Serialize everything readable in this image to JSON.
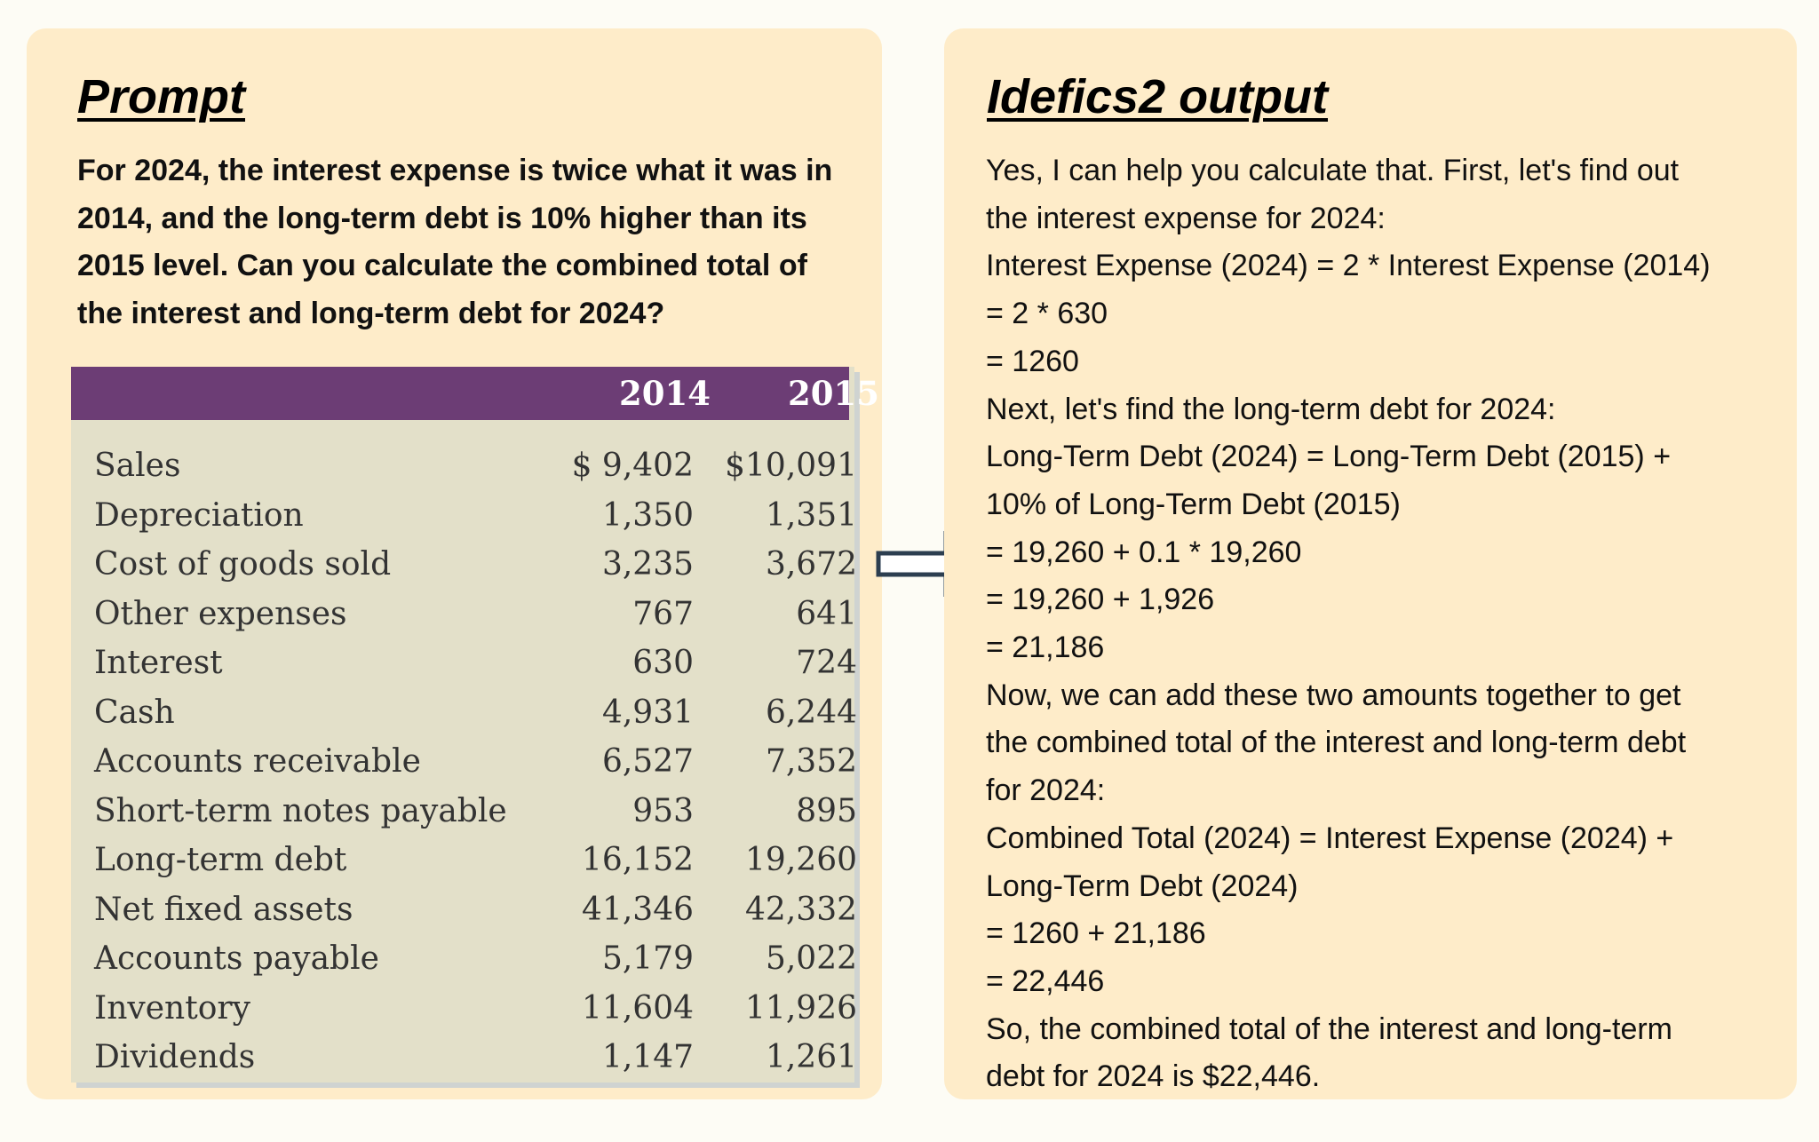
{
  "prompt_panel": {
    "title": "Prompt",
    "question": "For 2024, the interest expense is twice what it was in 2014, and the long-term debt is 10% higher than its 2015 level. Can you calculate the combined total of the interest and long-term debt for 2024?",
    "table": {
      "columns": [
        "2014",
        "2015"
      ],
      "rows": [
        {
          "label": "Sales",
          "y2014": "$ 9,402",
          "y2015": "$10,091"
        },
        {
          "label": "Depreciation",
          "y2014": "1,350",
          "y2015": "1,351"
        },
        {
          "label": "Cost of goods sold",
          "y2014": "3,235",
          "y2015": "3,672"
        },
        {
          "label": "Other expenses",
          "y2014": "767",
          "y2015": "641"
        },
        {
          "label": "Interest",
          "y2014": "630",
          "y2015": "724"
        },
        {
          "label": "Cash",
          "y2014": "4,931",
          "y2015": "6,244"
        },
        {
          "label": "Accounts receivable",
          "y2014": "6,527",
          "y2015": "7,352"
        },
        {
          "label": "Short-term notes payable",
          "y2014": "953",
          "y2015": "895"
        },
        {
          "label": "Long-term debt",
          "y2014": "16,152",
          "y2015": "19,260"
        },
        {
          "label": "Net fixed assets",
          "y2014": "41,346",
          "y2015": "42,332"
        },
        {
          "label": "Accounts payable",
          "y2014": "5,179",
          "y2015": "5,022"
        },
        {
          "label": "Inventory",
          "y2014": "11,604",
          "y2015": "11,926"
        },
        {
          "label": "Dividends",
          "y2014": "1,147",
          "y2015": "1,261"
        }
      ]
    }
  },
  "arrow_icon": "right-arrow-icon",
  "output_panel": {
    "title": "Idefics2 output",
    "lines": [
      "Yes, I can help you calculate that. First, let's find out",
      "the interest expense for 2024:",
      "Interest Expense (2024) = 2 * Interest Expense (2014)",
      "= 2 * 630",
      "= 1260",
      "Next, let's find the long-term debt for 2024:",
      "Long-Term Debt (2024) = Long-Term Debt (2015) +",
      "10% of Long-Term Debt (2015)",
      "= 19,260 + 0.1 * 19,260",
      "= 19,260 + 1,926",
      "= 21,186",
      "Now, we can add these two amounts together to get",
      "the combined total of the interest and long-term debt",
      "for 2024:",
      "Combined Total (2024) = Interest Expense (2024) +",
      "Long-Term Debt (2024)",
      "= 1260 + 21,186",
      "= 22,446",
      "So, the combined total of the interest and long-term",
      "debt for 2024 is $22,446."
    ]
  },
  "colors": {
    "background": "#fdfcf5",
    "panel": "#feecc9",
    "table_header": "#6c3d75",
    "table_body": "#e3e0c9"
  }
}
